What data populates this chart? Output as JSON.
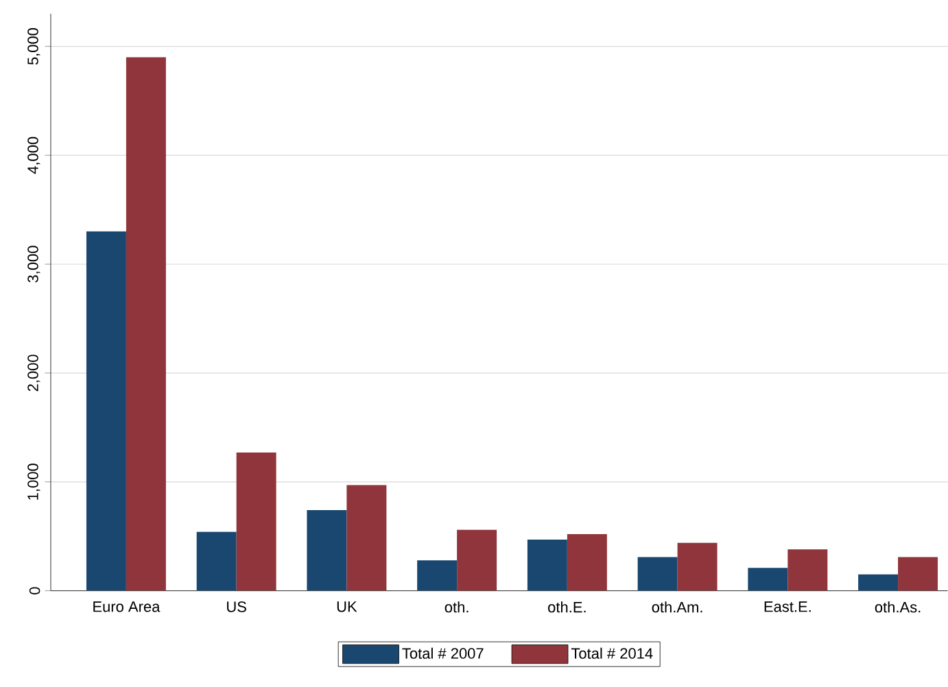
{
  "chart_data": {
    "type": "bar",
    "categories": [
      "Euro Area",
      "US",
      "UK",
      "oth.",
      "oth.E.",
      "oth.Am.",
      "East.E.",
      "oth.As."
    ],
    "series": [
      {
        "name": "Total # 2007",
        "color": "#1a476f",
        "values": [
          3300,
          540,
          740,
          280,
          470,
          310,
          210,
          150
        ]
      },
      {
        "name": "Total # 2014",
        "color": "#90353b",
        "values": [
          4900,
          1270,
          970,
          560,
          520,
          440,
          380,
          310
        ]
      }
    ],
    "ylim": [
      0,
      5300
    ],
    "yticks": [
      {
        "value": 0,
        "label": "0"
      },
      {
        "value": 1000,
        "label": "1,000"
      },
      {
        "value": 2000,
        "label": "2,000"
      },
      {
        "value": 3000,
        "label": "3,000"
      },
      {
        "value": 4000,
        "label": "4,000"
      },
      {
        "value": 5000,
        "label": "5,000"
      }
    ],
    "grid": "y",
    "legend": "bottom"
  }
}
